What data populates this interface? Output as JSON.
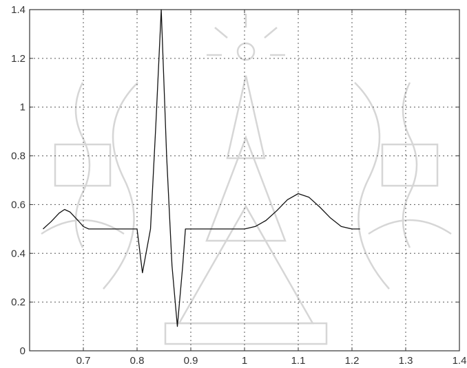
{
  "chart_data": {
    "type": "line",
    "title": "",
    "xlabel": "",
    "ylabel": "",
    "xlim": [
      0.6,
      1.4
    ],
    "ylim": [
      0,
      1.4
    ],
    "grid": true,
    "x_ticks": [
      0.7,
      0.8,
      0.9,
      1.0,
      1.1,
      1.2,
      1.3,
      1.4
    ],
    "x_tick_labels": [
      "0.7",
      "0.8",
      "0.9",
      "1",
      "1.1",
      "1.2",
      "1.3",
      "1.4"
    ],
    "y_ticks": [
      0,
      0.2,
      0.4,
      0.6,
      0.8,
      1.0,
      1.2,
      1.4
    ],
    "y_tick_labels": [
      "0",
      "0.2",
      "0.4",
      "0.6",
      "0.8",
      "1",
      "1.2",
      "1.4"
    ],
    "series": [
      {
        "color": "#111111",
        "x": [
          0.625,
          0.64,
          0.655,
          0.665,
          0.675,
          0.69,
          0.7,
          0.71,
          0.74,
          0.77,
          0.79,
          0.8,
          0.81,
          0.825,
          0.835,
          0.845,
          0.855,
          0.865,
          0.875,
          0.885,
          0.89,
          0.92,
          0.95,
          0.98,
          1.0,
          1.02,
          1.04,
          1.06,
          1.08,
          1.1,
          1.12,
          1.14,
          1.16,
          1.18,
          1.2,
          1.215
        ],
        "y": [
          0.5,
          0.53,
          0.565,
          0.58,
          0.57,
          0.535,
          0.51,
          0.5,
          0.5,
          0.5,
          0.5,
          0.5,
          0.32,
          0.5,
          0.93,
          1.4,
          0.8,
          0.35,
          0.1,
          0.35,
          0.5,
          0.5,
          0.5,
          0.5,
          0.5,
          0.51,
          0.535,
          0.575,
          0.62,
          0.645,
          0.63,
          0.59,
          0.545,
          0.51,
          0.5,
          0.5
        ]
      }
    ]
  }
}
